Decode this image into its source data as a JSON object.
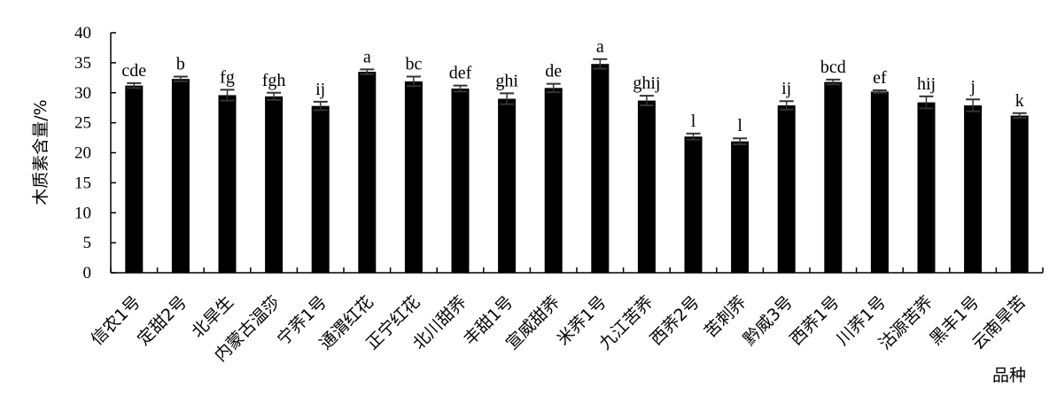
{
  "chart_data": {
    "type": "bar",
    "title": "",
    "xlabel": "品种",
    "ylabel": "木质素含量/%",
    "ylim": [
      0,
      40
    ],
    "yticks": [
      0,
      5,
      10,
      15,
      20,
      25,
      30,
      35,
      40
    ],
    "grid": false,
    "bar_color": "#000000",
    "categories": [
      "信农1号",
      "定甜2号",
      "北旱生",
      "内蒙古温莎",
      "宁荞1号",
      "通渭红花",
      "正宁红花",
      "北川甜荞",
      "丰甜1号",
      "宣威甜荞",
      "米荞1号",
      "九江苦荞",
      "西荞2号",
      "苦刺荞",
      "黔威3号",
      "西荞1号",
      "川荞1号",
      "沽源苦荞",
      "黑丰1号",
      "云南旱苦"
    ],
    "values": [
      31.2,
      32.3,
      29.6,
      29.4,
      27.8,
      33.5,
      31.9,
      30.7,
      29.0,
      30.8,
      34.8,
      28.7,
      22.7,
      21.9,
      27.9,
      31.8,
      30.2,
      28.4,
      27.9,
      26.2
    ],
    "errors": [
      0.4,
      0.4,
      0.9,
      0.6,
      0.7,
      0.4,
      0.8,
      0.5,
      0.9,
      0.7,
      0.8,
      0.8,
      0.5,
      0.5,
      0.7,
      0.4,
      0.2,
      1.0,
      1.0,
      0.4
    ],
    "significance": [
      "cde",
      "b",
      "fg",
      "fgh",
      "ij",
      "a",
      "bc",
      "def",
      "ghi",
      "de",
      "a",
      "ghij",
      "l",
      "l",
      "ij",
      "bcd",
      "ef",
      "hij",
      "j",
      "k"
    ]
  }
}
